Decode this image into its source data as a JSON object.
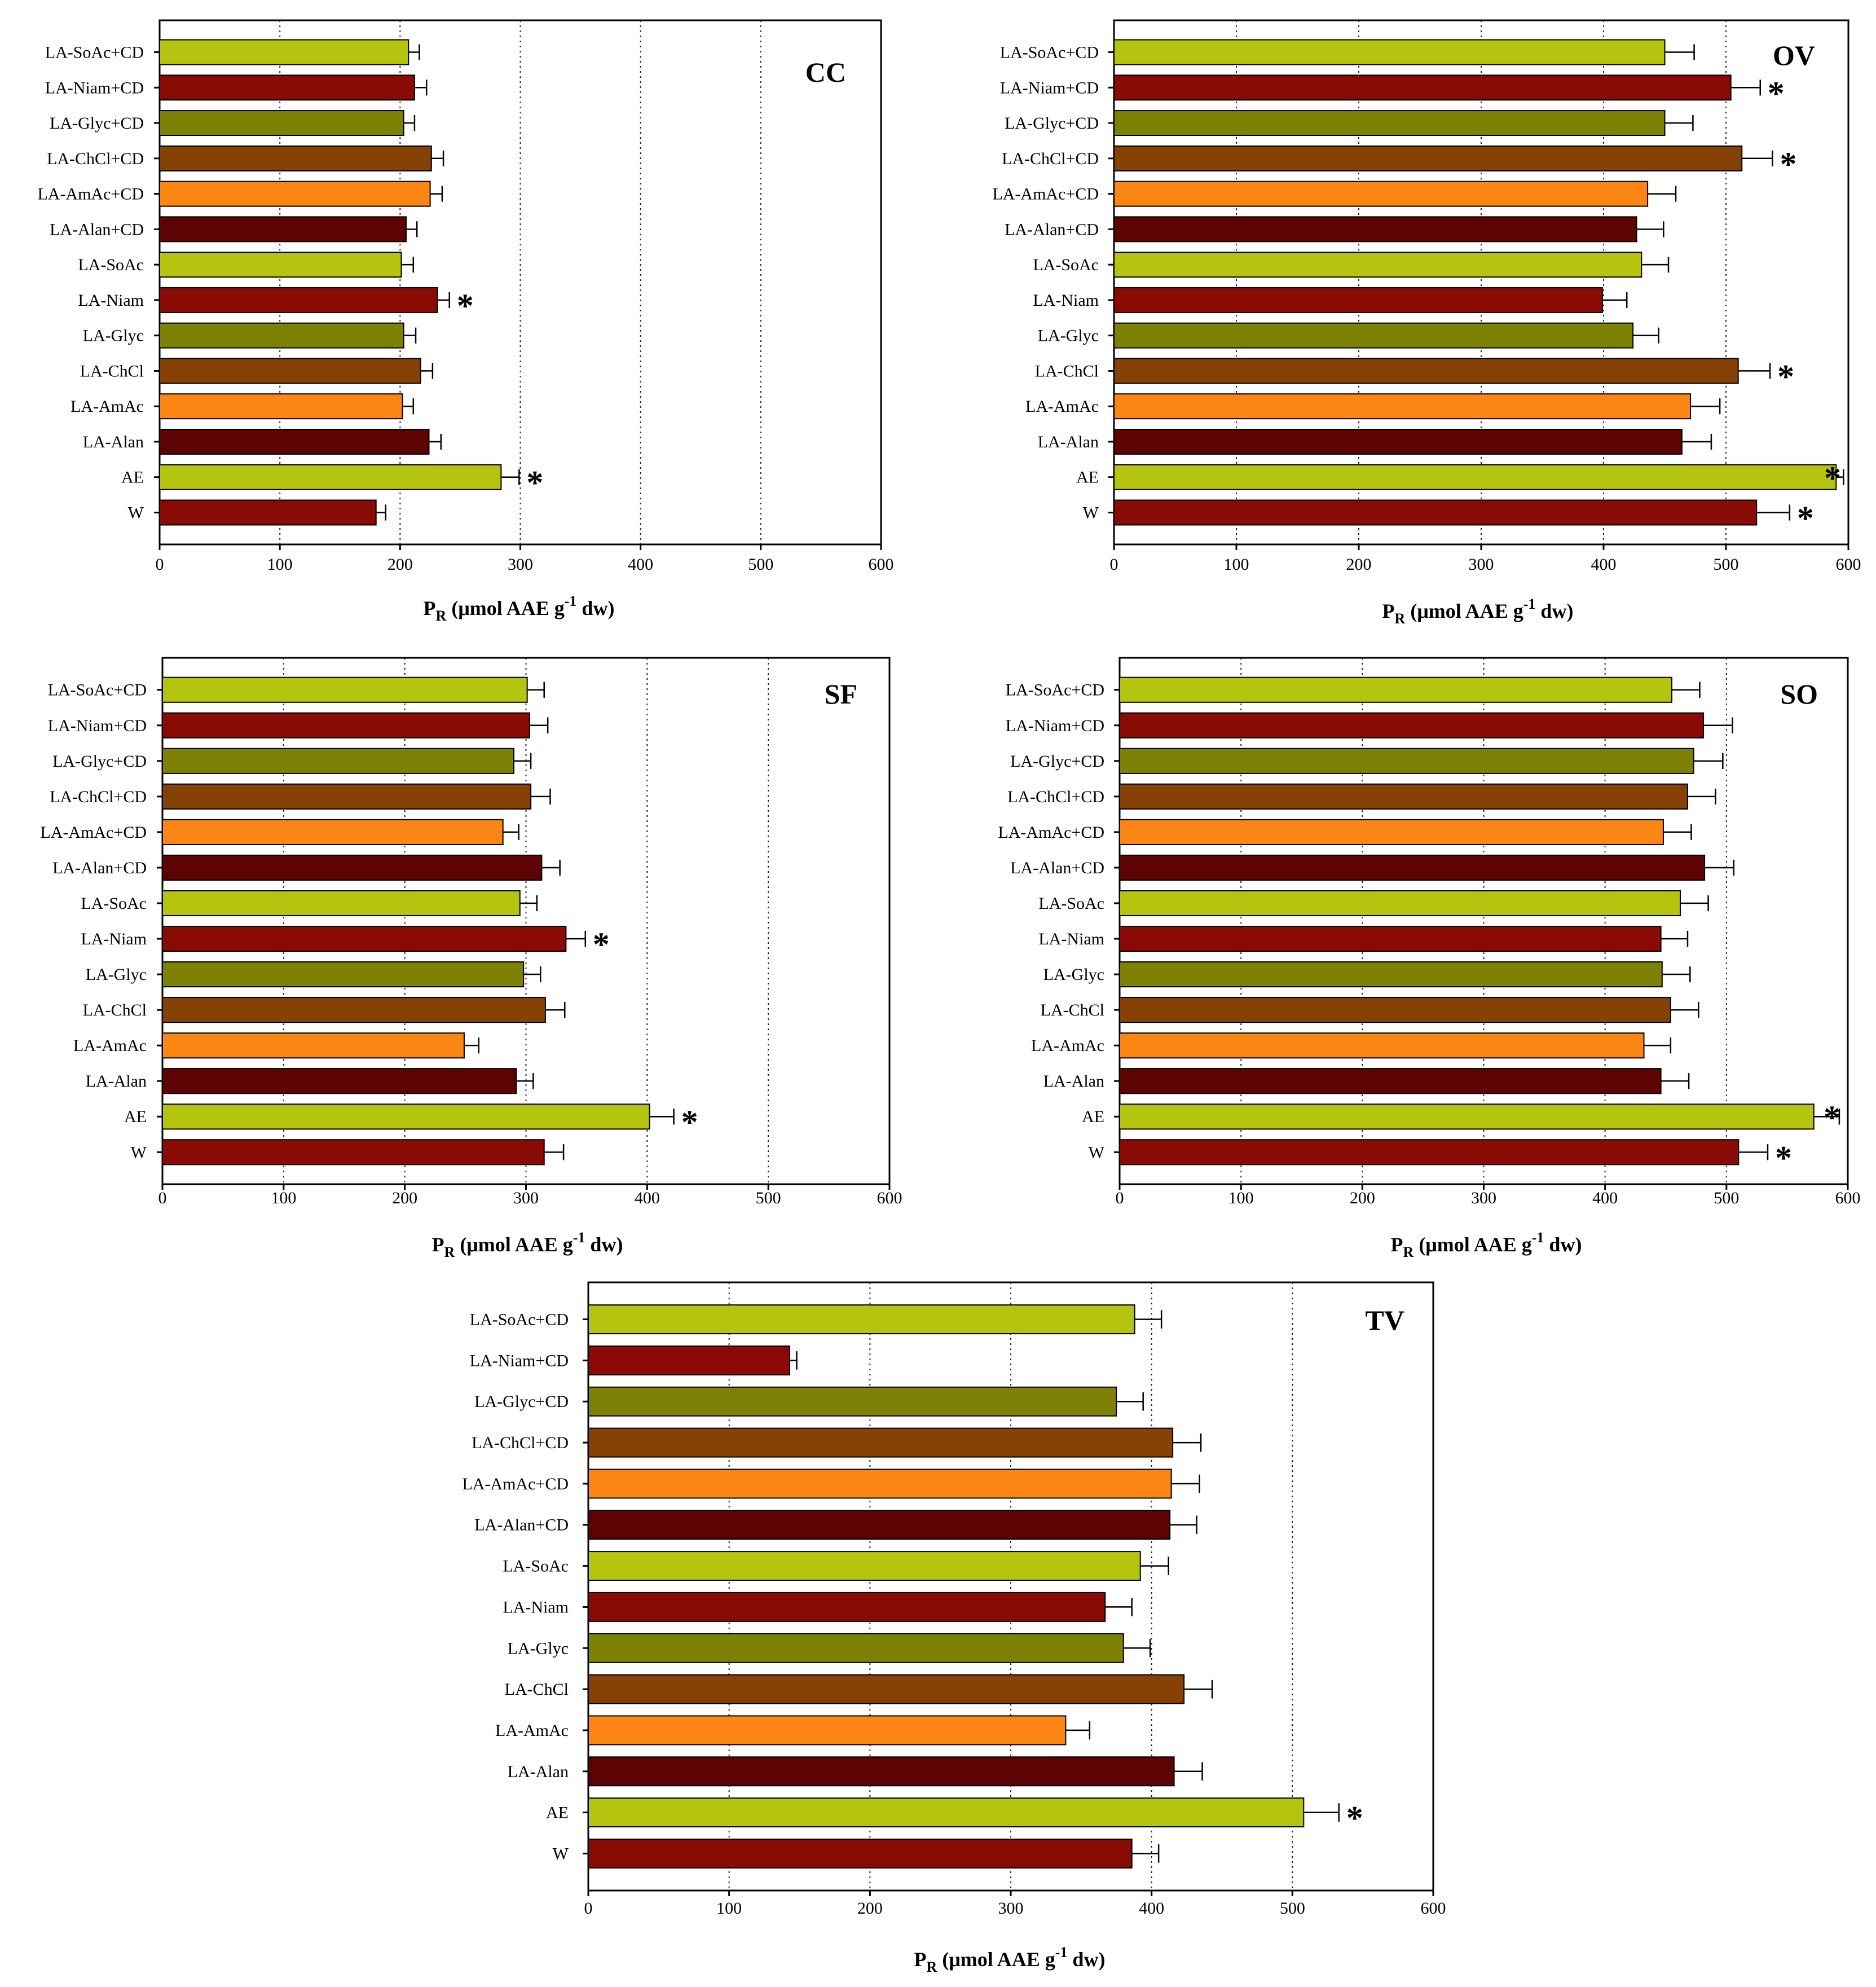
{
  "figure": {
    "axis_title_main": "P",
    "axis_title_sub": "R",
    "axis_title_rest1": " (μmol AAE g",
    "axis_title_sup": "-1",
    "axis_title_rest2": " dw)",
    "significance_marker": "*"
  },
  "colors": {
    "yellow_green": "#b5c40f",
    "dark_red": "#8a0a06",
    "olive": "#7d8206",
    "brown": "#864105",
    "orange": "#fb8613",
    "maroon": "#5e0303",
    "gridline": "#1a1a40",
    "frame": "#000000"
  },
  "chart_data": [
    {
      "type": "bar",
      "orientation": "horizontal",
      "title": "CC",
      "categories": [
        "LA-SoAc+CD",
        "LA-Niam+CD",
        "LA-Glyc+CD",
        "LA-ChCl+CD",
        "LA-AmAc+CD",
        "LA-Alan+CD",
        "LA-SoAc",
        "LA-Niam",
        "LA-Glyc",
        "LA-ChCl",
        "LA-AmAc",
        "LA-Alan",
        "AE",
        "W"
      ],
      "values": [
        207,
        212,
        203,
        226,
        225,
        205,
        201,
        231,
        203,
        217,
        202,
        224,
        284,
        180
      ],
      "errors": [
        9,
        10,
        9,
        10,
        10,
        9,
        10,
        10,
        10,
        10,
        9,
        10,
        15,
        8
      ],
      "significant": [
        false,
        false,
        false,
        false,
        false,
        false,
        false,
        true,
        false,
        false,
        false,
        false,
        true,
        false
      ],
      "xlim": [
        0,
        600
      ],
      "xticks": [
        0,
        100,
        200,
        300,
        400,
        500,
        600
      ],
      "xlabel": "PR (μmol AAE g-1 dw)",
      "grid": "vertical dotted"
    },
    {
      "type": "bar",
      "orientation": "horizontal",
      "title": "OV",
      "categories": [
        "LA-SoAc+CD",
        "LA-Niam+CD",
        "LA-Glyc+CD",
        "LA-ChCl+CD",
        "LA-AmAc+CD",
        "LA-Alan+CD",
        "LA-SoAc",
        "LA-Niam",
        "LA-Glyc",
        "LA-ChCl",
        "LA-AmAc",
        "LA-Alan",
        "AE",
        "W"
      ],
      "values": [
        450,
        504,
        450,
        513,
        436,
        427,
        431,
        399,
        424,
        510,
        471,
        464,
        590,
        525
      ],
      "errors": [
        24,
        24,
        23,
        25,
        23,
        22,
        22,
        20,
        21,
        26,
        24,
        24,
        6,
        27
      ],
      "significant": [
        false,
        true,
        false,
        true,
        false,
        false,
        false,
        false,
        false,
        true,
        false,
        false,
        true,
        true
      ],
      "xlim": [
        0,
        600
      ],
      "xticks": [
        0,
        100,
        200,
        300,
        400,
        500,
        600
      ],
      "xlabel": "PR (μmol AAE g-1 dw)",
      "grid": "vertical dotted"
    },
    {
      "type": "bar",
      "orientation": "horizontal",
      "title": "SF",
      "categories": [
        "LA-SoAc+CD",
        "LA-Niam+CD",
        "LA-Glyc+CD",
        "LA-ChCl+CD",
        "LA-AmAc+CD",
        "LA-Alan+CD",
        "LA-SoAc",
        "LA-Niam",
        "LA-Glyc",
        "LA-ChCl",
        "LA-AmAc",
        "LA-Alan",
        "AE",
        "W"
      ],
      "values": [
        301,
        303,
        290,
        304,
        281,
        313,
        295,
        333,
        298,
        316,
        249,
        292,
        402,
        315
      ],
      "errors": [
        14,
        15,
        14,
        16,
        13,
        15,
        14,
        16,
        14,
        16,
        12,
        14,
        20,
        16
      ],
      "significant": [
        false,
        false,
        false,
        false,
        false,
        false,
        false,
        true,
        false,
        false,
        false,
        false,
        true,
        false
      ],
      "xlim": [
        0,
        600
      ],
      "xticks": [
        0,
        100,
        200,
        300,
        400,
        500,
        600
      ],
      "xlabel": "PR (μmol AAE g-1 dw)",
      "grid": "vertical dotted"
    },
    {
      "type": "bar",
      "orientation": "horizontal",
      "title": "SO",
      "categories": [
        "LA-SoAc+CD",
        "LA-Niam+CD",
        "LA-Glyc+CD",
        "LA-ChCl+CD",
        "LA-AmAc+CD",
        "LA-Alan+CD",
        "LA-SoAc",
        "LA-Niam",
        "LA-Glyc",
        "LA-ChCl",
        "LA-AmAc",
        "LA-Alan",
        "AE",
        "W"
      ],
      "values": [
        455,
        481,
        473,
        468,
        448,
        482,
        462,
        446,
        447,
        454,
        432,
        446,
        572,
        510
      ],
      "errors": [
        23,
        24,
        24,
        23,
        23,
        24,
        23,
        22,
        23,
        23,
        22,
        23,
        21,
        24
      ],
      "significant": [
        false,
        false,
        false,
        false,
        false,
        false,
        false,
        false,
        false,
        false,
        false,
        false,
        true,
        true
      ],
      "xlim": [
        0,
        600
      ],
      "xticks": [
        0,
        100,
        200,
        300,
        400,
        500,
        600
      ],
      "xlabel": "PR (μmol AAE g-1 dw)",
      "grid": "vertical dotted"
    },
    {
      "type": "bar",
      "orientation": "horizontal",
      "title": "TV",
      "categories": [
        "LA-SoAc+CD",
        "LA-Niam+CD",
        "LA-Glyc+CD",
        "LA-ChCl+CD",
        "LA-AmAc+CD",
        "LA-Alan+CD",
        "LA-SoAc",
        "LA-Niam",
        "LA-Glyc",
        "LA-ChCl",
        "LA-AmAc",
        "LA-Alan",
        "AE",
        "W"
      ],
      "values": [
        388,
        143,
        375,
        415,
        414,
        413,
        392,
        367,
        380,
        423,
        339,
        416,
        508,
        386
      ],
      "errors": [
        19,
        5,
        19,
        20,
        20,
        19,
        20,
        19,
        19,
        20,
        17,
        20,
        25,
        19
      ],
      "significant": [
        false,
        false,
        false,
        false,
        false,
        false,
        false,
        false,
        false,
        false,
        false,
        false,
        true,
        false
      ],
      "xlim": [
        0,
        600
      ],
      "xticks": [
        0,
        100,
        200,
        300,
        400,
        500,
        600
      ],
      "xlabel": "PR (μmol AAE g-1 dw)",
      "grid": "vertical dotted"
    }
  ]
}
